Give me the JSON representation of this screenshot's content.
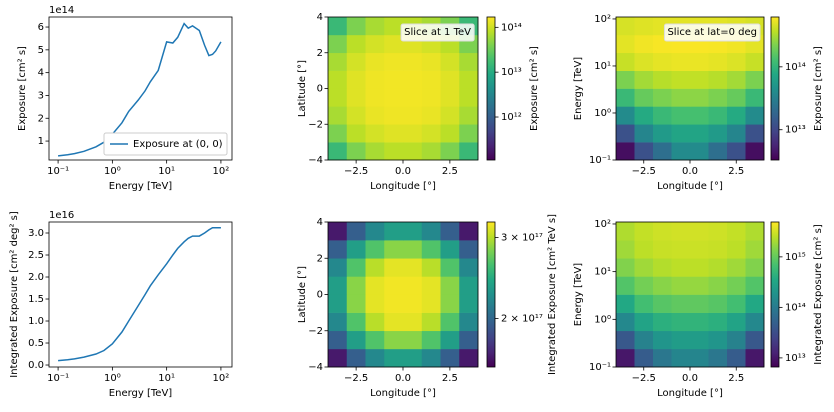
{
  "chart_data": [
    {
      "type": "line",
      "xlabel": "Energy [TeV]",
      "ylabel": "Exposure [cm² s]",
      "offset_text": "1e14",
      "xscale": "log",
      "xlim": [
        0.068,
        160
      ],
      "ylim": [
        0.17,
        6.44
      ],
      "xticks": [
        {
          "value": 0.1,
          "label": "10⁻¹"
        },
        {
          "value": 1,
          "label": "10⁰"
        },
        {
          "value": 10,
          "label": "10¹"
        },
        {
          "value": 100,
          "label": "10²"
        }
      ],
      "yticks": [
        1,
        2,
        3,
        4,
        5,
        6
      ],
      "legend": "lower right",
      "x": [
        0.1,
        0.15,
        0.2,
        0.3,
        0.5,
        0.7,
        1,
        1.5,
        2,
        3,
        4,
        5,
        7,
        10,
        13,
        16,
        21,
        25,
        30,
        40,
        50,
        60,
        70,
        80,
        100
      ],
      "series": [
        {
          "name": "Exposure at (0, 0)",
          "color": "#1f77b4",
          "values": [
            0.35,
            0.4,
            0.45,
            0.55,
            0.75,
            0.95,
            1.3,
            1.8,
            2.3,
            2.8,
            3.2,
            3.6,
            4.1,
            5.35,
            5.3,
            5.55,
            6.15,
            5.95,
            6.05,
            5.85,
            5.2,
            4.75,
            4.8,
            4.95,
            5.35
          ]
        }
      ]
    },
    {
      "type": "heatmap",
      "xlabel": "Longitude [°]",
      "ylabel": "Latitude [°]",
      "annotation": "Slice at 1 TeV",
      "colormap": "viridis",
      "xlim": [
        -4,
        4
      ],
      "ylim": [
        -4,
        4
      ],
      "xticks": [
        {
          "value": -2.5,
          "label": "−2.5"
        },
        {
          "value": 0,
          "label": "0.0"
        },
        2.5
      ],
      "yticks": [
        {
          "value": -4,
          "label": "−4"
        },
        {
          "value": -2,
          "label": "−2"
        },
        0,
        2,
        4
      ],
      "x_edges": [
        -4,
        -3,
        -2,
        -1,
        0,
        1,
        2,
        3,
        4
      ],
      "y_edges": [
        -4,
        -3,
        -2,
        -1,
        0,
        1,
        2,
        3,
        4
      ],
      "z": [
        [
          15000000000000.0,
          40000000000000.0,
          65000000000000.0,
          80000000000000.0,
          80000000000000.0,
          65000000000000.0,
          40000000000000.0,
          15000000000000.0
        ],
        [
          40000000000000.0,
          80000000000000.0,
          105000000000000.0,
          120000000000000.0,
          120000000000000.0,
          105000000000000.0,
          80000000000000.0,
          40000000000000.0
        ],
        [
          65000000000000.0,
          105000000000000.0,
          135000000000000.0,
          145000000000000.0,
          145000000000000.0,
          135000000000000.0,
          105000000000000.0,
          65000000000000.0
        ],
        [
          80000000000000.0,
          120000000000000.0,
          145000000000000.0,
          150000000000000.0,
          150000000000000.0,
          145000000000000.0,
          120000000000000.0,
          80000000000000.0
        ],
        [
          80000000000000.0,
          120000000000000.0,
          145000000000000.0,
          150000000000000.0,
          150000000000000.0,
          145000000000000.0,
          120000000000000.0,
          80000000000000.0
        ],
        [
          65000000000000.0,
          105000000000000.0,
          135000000000000.0,
          145000000000000.0,
          145000000000000.0,
          135000000000000.0,
          105000000000000.0,
          65000000000000.0
        ],
        [
          40000000000000.0,
          80000000000000.0,
          105000000000000.0,
          120000000000000.0,
          120000000000000.0,
          105000000000000.0,
          80000000000000.0,
          40000000000000.0
        ],
        [
          15000000000000.0,
          40000000000000.0,
          65000000000000.0,
          80000000000000.0,
          80000000000000.0,
          65000000000000.0,
          40000000000000.0,
          15000000000000.0
        ]
      ],
      "colorbar": {
        "label": "Exposure [cm² s]",
        "scale": "log",
        "lim": [
          110000000000.0,
          170000000000000.0
        ],
        "ticks": [
          {
            "value": 1000000000000.0,
            "label": "10¹²"
          },
          {
            "value": 10000000000000.0,
            "label": "10¹³"
          },
          {
            "value": 100000000000000.0,
            "label": "10¹⁴"
          }
        ]
      }
    },
    {
      "type": "heatmap",
      "xlabel": "Longitude [°]",
      "ylabel": "Energy [TeV]",
      "annotation": "Slice at lat=0 deg",
      "colormap": "viridis",
      "yscale": "log",
      "xlim": [
        -4,
        4
      ],
      "ylim": [
        0.1,
        110
      ],
      "xticks": [
        {
          "value": -2.5,
          "label": "−2.5"
        },
        {
          "value": 0,
          "label": "0.0"
        },
        2.5
      ],
      "yticks": [
        {
          "value": 0.1,
          "label": "10⁻¹"
        },
        {
          "value": 1,
          "label": "10⁰"
        },
        {
          "value": 10,
          "label": "10¹"
        },
        {
          "value": 100,
          "label": "10²"
        }
      ],
      "x_edges": [
        -4,
        -3,
        -2,
        -1,
        0,
        1,
        2,
        3,
        4
      ],
      "y_edges": [
        0.1,
        0.24,
        0.575,
        1.38,
        3.31,
        7.94,
        19.1,
        45.7,
        110
      ],
      "z": [
        [
          4000000000000.0,
          12000000000000.0,
          22000000000000.0,
          40000000000000.0,
          40000000000000.0,
          22000000000000.0,
          12000000000000.0,
          4000000000000.0
        ],
        [
          12000000000000.0,
          35000000000000.0,
          55000000000000.0,
          70000000000000.0,
          70000000000000.0,
          55000000000000.0,
          35000000000000.0,
          12000000000000.0
        ],
        [
          40000000000000.0,
          80000000000000.0,
          110000000000000.0,
          130000000000000.0,
          130000000000000.0,
          110000000000000.0,
          80000000000000.0,
          40000000000000.0
        ],
        [
          110000000000000.0,
          180000000000000.0,
          220000000000000.0,
          250000000000000.0,
          250000000000000.0,
          220000000000000.0,
          180000000000000.0,
          110000000000000.0
        ],
        [
          220000000000000.0,
          300000000000000.0,
          350000000000000.0,
          380000000000000.0,
          380000000000000.0,
          350000000000000.0,
          300000000000000.0,
          220000000000000.0
        ],
        [
          400000000000000.0,
          470000000000000.0,
          510000000000000.0,
          530000000000000.0,
          530000000000000.0,
          510000000000000.0,
          470000000000000.0,
          400000000000000.0
        ],
        [
          500000000000000.0,
          560000000000000.0,
          590000000000000.0,
          600000000000000.0,
          600000000000000.0,
          590000000000000.0,
          560000000000000.0,
          500000000000000.0
        ],
        [
          450000000000000.0,
          480000000000000.0,
          500000000000000.0,
          500000000000000.0,
          500000000000000.0,
          500000000000000.0,
          480000000000000.0,
          450000000000000.0
        ]
      ],
      "colorbar": {
        "label": "Exposure [cm² s]",
        "scale": "log",
        "lim": [
          3300000000000.0,
          620000000000000.0
        ],
        "ticks": [
          {
            "value": 10000000000000.0,
            "label": "10¹³"
          },
          {
            "value": 100000000000000.0,
            "label": "10¹⁴"
          }
        ]
      }
    },
    {
      "type": "line",
      "xlabel": "Energy [TeV]",
      "ylabel": "Integrated Exposure [cm² deg² s]",
      "offset_text": "1e16",
      "xscale": "log",
      "xlim": [
        0.068,
        160
      ],
      "ylim": [
        -0.045,
        3.25
      ],
      "xticks": [
        {
          "value": 0.1,
          "label": "10⁻¹"
        },
        {
          "value": 1,
          "label": "10⁰"
        },
        {
          "value": 10,
          "label": "10¹"
        },
        {
          "value": 100,
          "label": "10²"
        }
      ],
      "yticks": [
        {
          "value": 0,
          "label": "0.0"
        },
        0.5,
        {
          "value": 1,
          "label": "1.0"
        },
        1.5,
        {
          "value": 2,
          "label": "2.0"
        },
        2.5,
        {
          "value": 3,
          "label": "3.0"
        }
      ],
      "x": [
        0.1,
        0.15,
        0.2,
        0.3,
        0.5,
        0.7,
        1,
        1.5,
        2,
        3,
        4,
        5,
        7,
        10,
        13,
        16,
        21,
        25,
        30,
        40,
        50,
        60,
        70,
        80,
        100
      ],
      "series": [
        {
          "color": "#1f77b4",
          "values": [
            0.1,
            0.12,
            0.14,
            0.18,
            0.25,
            0.33,
            0.48,
            0.75,
            1.0,
            1.35,
            1.6,
            1.8,
            2.05,
            2.3,
            2.5,
            2.65,
            2.8,
            2.88,
            2.93,
            2.93,
            3.0,
            3.07,
            3.12,
            3.12,
            3.12
          ]
        }
      ]
    },
    {
      "type": "heatmap",
      "xlabel": "Longitude [°]",
      "ylabel": "Latitude [°]",
      "colormap": "viridis",
      "xlim": [
        -4,
        4
      ],
      "ylim": [
        -4,
        4
      ],
      "xticks": [
        {
          "value": -2.5,
          "label": "−2.5"
        },
        {
          "value": 0,
          "label": "0.0"
        },
        2.5
      ],
      "yticks": [
        {
          "value": -4,
          "label": "−4"
        },
        {
          "value": -2,
          "label": "−2"
        },
        0,
        2,
        4
      ],
      "x_edges": [
        -4,
        -3,
        -2,
        -1,
        0,
        1,
        2,
        3,
        4
      ],
      "y_edges": [
        -4,
        -3,
        -2,
        -1,
        0,
        1,
        2,
        3,
        4
      ],
      "z": [
        [
          1.65e+17,
          1.95e+17,
          2.2e+17,
          2.35e+17,
          2.35e+17,
          2.2e+17,
          1.95e+17,
          1.65e+17
        ],
        [
          1.95e+17,
          2.35e+17,
          2.65e+17,
          2.85e+17,
          2.85e+17,
          2.65e+17,
          2.35e+17,
          1.95e+17
        ],
        [
          2.2e+17,
          2.65e+17,
          3e+17,
          3.15e+17,
          3.15e+17,
          3e+17,
          2.65e+17,
          2.2e+17
        ],
        [
          2.35e+17,
          2.85e+17,
          3.15e+17,
          3.2e+17,
          3.2e+17,
          3.15e+17,
          2.85e+17,
          2.35e+17
        ],
        [
          2.35e+17,
          2.85e+17,
          3.15e+17,
          3.2e+17,
          3.2e+17,
          3.15e+17,
          2.85e+17,
          2.35e+17
        ],
        [
          2.2e+17,
          2.65e+17,
          3e+17,
          3.15e+17,
          3.15e+17,
          3e+17,
          2.65e+17,
          2.2e+17
        ],
        [
          1.95e+17,
          2.35e+17,
          2.65e+17,
          2.85e+17,
          2.85e+17,
          2.65e+17,
          2.35e+17,
          1.95e+17
        ],
        [
          1.65e+17,
          1.95e+17,
          2.2e+17,
          2.35e+17,
          2.35e+17,
          2.2e+17,
          1.95e+17,
          1.65e+17
        ]
      ],
      "colorbar": {
        "label": "Integrated Exposure [cm² TeV s]",
        "scale": "log",
        "lim": [
          1.57e+17,
          3.24e+17
        ],
        "ticks": [
          {
            "value": 2e+17,
            "label": "2 × 10¹⁷"
          },
          {
            "value": 3e+17,
            "label": "3 × 10¹⁷"
          }
        ]
      }
    },
    {
      "type": "heatmap",
      "xlabel": "Longitude [°]",
      "ylabel": "Energy [TeV]",
      "colormap": "viridis",
      "yscale": "log",
      "xlim": [
        -4,
        4
      ],
      "ylim": [
        0.1,
        110
      ],
      "xticks": [
        {
          "value": -2.5,
          "label": "−2.5"
        },
        {
          "value": 0,
          "label": "0.0"
        },
        2.5
      ],
      "yticks": [
        {
          "value": 0.1,
          "label": "10⁻¹"
        },
        {
          "value": 1,
          "label": "10⁰"
        },
        {
          "value": 10,
          "label": "10¹"
        },
        {
          "value": 100,
          "label": "10²"
        }
      ],
      "x_edges": [
        -4,
        -3,
        -2,
        -1,
        0,
        1,
        2,
        3,
        4
      ],
      "y_edges": [
        0.1,
        0.24,
        0.575,
        1.38,
        3.31,
        7.94,
        19.1,
        45.7,
        110
      ],
      "z": [
        [
          10000000000000.0,
          45000000000000.0,
          90000000000000.0,
          130000000000000.0,
          130000000000000.0,
          90000000000000.0,
          45000000000000.0,
          10000000000000.0
        ],
        [
          40000000000000.0,
          120000000000000.0,
          200000000000000.0,
          250000000000000.0,
          250000000000000.0,
          200000000000000.0,
          120000000000000.0,
          40000000000000.0
        ],
        [
          140000000000000.0,
          300000000000000.0,
          420000000000000.0,
          480000000000000.0,
          480000000000000.0,
          420000000000000.0,
          300000000000000.0,
          140000000000000.0
        ],
        [
          350000000000000.0,
          650000000000000.0,
          850000000000000.0,
          950000000000000.0,
          950000000000000.0,
          850000000000000.0,
          650000000000000.0,
          350000000000000.0
        ],
        [
          800000000000000.0,
          1200000000000000.0,
          1500000000000000.0,
          1700000000000000.0,
          1700000000000000.0,
          1500000000000000.0,
          1200000000000000.0,
          800000000000000.0
        ],
        [
          1400000000000000.0,
          1900000000000000.0,
          2300000000000000.0,
          2500000000000000.0,
          2500000000000000.0,
          2300000000000000.0,
          1900000000000000.0,
          1400000000000000.0
        ],
        [
          1900000000000000.0,
          2500000000000000.0,
          2800000000000000.0,
          2900000000000000.0,
          2900000000000000.0,
          2800000000000000.0,
          2500000000000000.0,
          1900000000000000.0
        ],
        [
          2200000000000000.0,
          2700000000000000.0,
          3000000000000000.0,
          3100000000000000.0,
          3100000000000000.0,
          3000000000000000.0,
          2700000000000000.0,
          2200000000000000.0
        ]
      ],
      "colorbar": {
        "label": "Integrated Exposure [cm² s]",
        "scale": "log",
        "lim": [
          6600000000000.0,
          4900000000000000.0
        ],
        "ticks": [
          {
            "value": 10000000000000.0,
            "label": "10¹³"
          },
          {
            "value": 100000000000000.0,
            "label": "10¹⁴"
          },
          {
            "value": 1000000000000000.0,
            "label": "10¹⁵"
          }
        ]
      }
    }
  ]
}
